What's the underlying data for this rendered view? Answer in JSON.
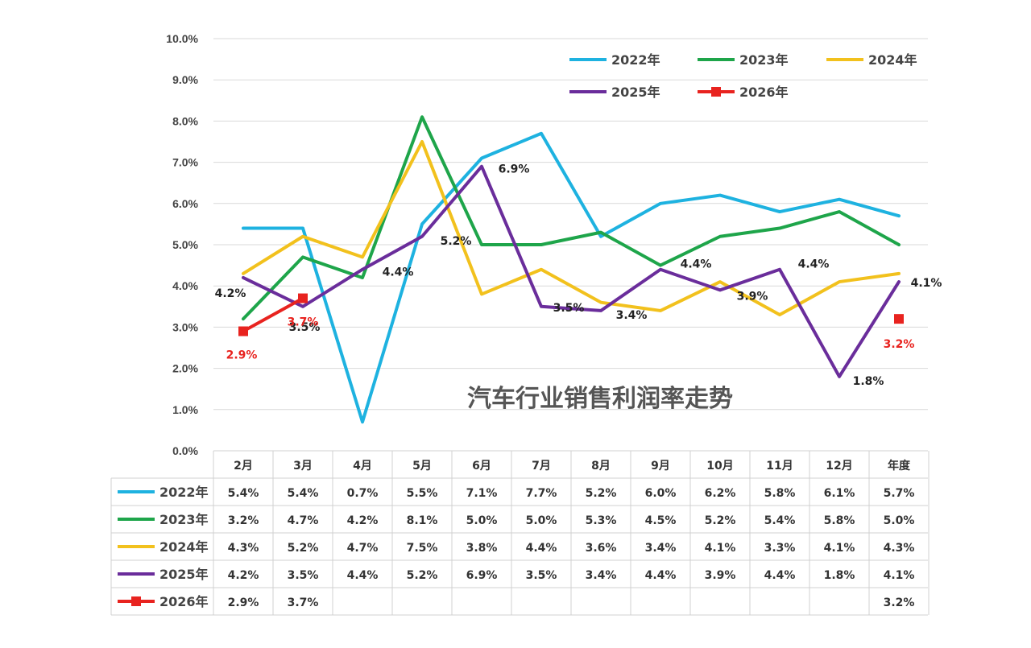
{
  "chart_data": {
    "type": "line",
    "title": "汽车行业销售利润率走势",
    "categories": [
      "2月",
      "3月",
      "4月",
      "5月",
      "6月",
      "7月",
      "8月",
      "9月",
      "10月",
      "11月",
      "12月",
      "年度"
    ],
    "ylim": [
      0,
      10
    ],
    "yticks": [
      "0.0%",
      "1.0%",
      "2.0%",
      "3.0%",
      "4.0%",
      "5.0%",
      "6.0%",
      "7.0%",
      "8.0%",
      "9.0%",
      "10.0%"
    ],
    "grid": true,
    "legend_position": "top-right",
    "series": [
      {
        "name": "2022年",
        "color": "#1eb2e0",
        "values": [
          5.4,
          5.4,
          0.7,
          5.5,
          7.1,
          7.7,
          5.2,
          6.0,
          6.2,
          5.8,
          6.1,
          5.7
        ],
        "labels": [
          "5.4%",
          "5.4%",
          "0.7%",
          "5.5%",
          "7.1%",
          "7.7%",
          "5.2%",
          "6.0%",
          "6.2%",
          "5.8%",
          "6.1%",
          "5.7%"
        ]
      },
      {
        "name": "2023年",
        "color": "#1ea54a",
        "values": [
          3.2,
          4.7,
          4.2,
          8.1,
          5.0,
          5.0,
          5.3,
          4.5,
          5.2,
          5.4,
          5.8,
          5.0
        ],
        "labels": [
          "3.2%",
          "4.7%",
          "4.2%",
          "8.1%",
          "5.0%",
          "5.0%",
          "5.3%",
          "4.5%",
          "5.2%",
          "5.4%",
          "5.8%",
          "5.0%"
        ]
      },
      {
        "name": "2024年",
        "color": "#f2c11d",
        "values": [
          4.3,
          5.2,
          4.7,
          7.5,
          3.8,
          4.4,
          3.6,
          3.4,
          4.1,
          3.3,
          4.1,
          4.3
        ],
        "labels": [
          "4.3%",
          "5.2%",
          "4.7%",
          "7.5%",
          "3.8%",
          "4.4%",
          "3.6%",
          "3.4%",
          "4.1%",
          "3.3%",
          "4.1%",
          "4.3%"
        ]
      },
      {
        "name": "2025年",
        "color": "#6a2d9b",
        "values": [
          4.2,
          3.5,
          4.4,
          5.2,
          6.9,
          3.5,
          3.4,
          4.4,
          3.9,
          4.4,
          1.8,
          4.1
        ],
        "labels": [
          "4.2%",
          "3.5%",
          "4.4%",
          "5.2%",
          "6.9%",
          "3.5%",
          "3.4%",
          "4.4%",
          "3.9%",
          "4.4%",
          "1.8%",
          "4.1%"
        ]
      },
      {
        "name": "2026年",
        "color": "#e8231f",
        "values": [
          2.9,
          3.7,
          null,
          null,
          null,
          null,
          null,
          null,
          null,
          null,
          null,
          3.2
        ],
        "labels": [
          "2.9%",
          "3.7%",
          "",
          "",
          "",
          "",
          "",
          "",
          "",
          "",
          "",
          "3.2%"
        ]
      }
    ],
    "data_labels": [
      {
        "series": 3,
        "index": 0,
        "text": "4.2%"
      },
      {
        "series": 3,
        "index": 1,
        "text": "3.5%"
      },
      {
        "series": 3,
        "index": 2,
        "text": "4.4%"
      },
      {
        "series": 3,
        "index": 3,
        "text": "5.2%"
      },
      {
        "series": 3,
        "index": 4,
        "text": "6.9%"
      },
      {
        "series": 3,
        "index": 5,
        "text": "3.5%"
      },
      {
        "series": 3,
        "index": 6,
        "text": "3.4%"
      },
      {
        "series": 3,
        "index": 7,
        "text": "4.4%"
      },
      {
        "series": 3,
        "index": 8,
        "text": "3.9%"
      },
      {
        "series": 3,
        "index": 9,
        "text": "4.4%"
      },
      {
        "series": 3,
        "index": 10,
        "text": "1.8%"
      },
      {
        "series": 3,
        "index": 11,
        "text": "4.1%"
      },
      {
        "series": 4,
        "index": 0,
        "text": "2.9%"
      },
      {
        "series": 4,
        "index": 1,
        "text": "3.7%"
      },
      {
        "series": 4,
        "index": 11,
        "text": "3.2%"
      }
    ]
  }
}
